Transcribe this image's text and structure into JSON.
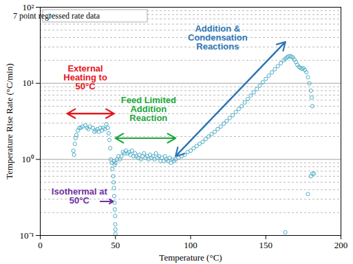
{
  "chart_data": {
    "type": "scatter",
    "x_label": "Temperature (°C)",
    "y_label": "Temperature Rise Rate (°C/min)",
    "log": "y",
    "grid": true,
    "legend": "top-left",
    "xlim": [
      0,
      200
    ],
    "xticks": [
      0,
      50,
      100,
      150,
      200
    ],
    "ylim": [
      0.1,
      100
    ],
    "yticks": [
      {
        "value": 0.1,
        "label": "10⁻¹"
      },
      {
        "value": 1,
        "label": "10⁰"
      },
      {
        "value": 10,
        "label": "10¹"
      },
      {
        "value": 100,
        "label": "10²"
      }
    ],
    "x": [
      22,
      22.5,
      23,
      23.5,
      24,
      25,
      26,
      27,
      28,
      30,
      31,
      32,
      33,
      35,
      36,
      37,
      38,
      39,
      40,
      41,
      42,
      43,
      44,
      45,
      45.5,
      46,
      46.5,
      47,
      47.5,
      48,
      48.5,
      48.8,
      49,
      49.2,
      49.4,
      49.6,
      49.8,
      49.9,
      50,
      50,
      49,
      49.5,
      50,
      51,
      52,
      53,
      54,
      55,
      56,
      57,
      58,
      59,
      60,
      61,
      62,
      63,
      64,
      65,
      66,
      67,
      68,
      69,
      70,
      71,
      72,
      73,
      74,
      75,
      76,
      77,
      78,
      79,
      80,
      81,
      82,
      83,
      84,
      85,
      86,
      87,
      88,
      89,
      90,
      92,
      94,
      96,
      98,
      100,
      102,
      104,
      106,
      108,
      110,
      112,
      114,
      116,
      118,
      120,
      122,
      124,
      126,
      128,
      130,
      132,
      134,
      136,
      138,
      140,
      142,
      144,
      146,
      148,
      150,
      152,
      154,
      156,
      158,
      160,
      162,
      163,
      164,
      165,
      166,
      167,
      168,
      169,
      170,
      171,
      172,
      173,
      174,
      175,
      176,
      177,
      178,
      179,
      180,
      180.5,
      181,
      163,
      178,
      180,
      181,
      182
    ],
    "series": [
      {
        "name": "7 point regressed rate data",
        "color": "#4bacc6",
        "marker": "circle",
        "values": [
          1.3,
          1.15,
          1.6,
          1.9,
          2.1,
          2.4,
          2.6,
          2.6,
          2.7,
          2.8,
          2.6,
          2.5,
          2.7,
          2.6,
          2.3,
          2.4,
          2.5,
          2.3,
          2.6,
          2.4,
          2.6,
          2.5,
          2.9,
          2.6,
          2.2,
          1.8,
          1.4,
          1.0,
          0.9,
          0.75,
          0.6,
          0.5,
          0.42,
          0.33,
          0.27,
          0.22,
          0.18,
          0.14,
          0.12,
          0.105,
          0.95,
          0.85,
          0.9,
          1.0,
          1.1,
          1.0,
          1.1,
          1.25,
          1.2,
          1.3,
          1.2,
          1.25,
          1.15,
          1.3,
          1.1,
          1.2,
          1.1,
          1.05,
          1.15,
          1.0,
          1.1,
          1.2,
          1.05,
          1.1,
          1.0,
          1.15,
          1.05,
          1.1,
          1.0,
          1.2,
          1.05,
          1.1,
          0.95,
          1.05,
          0.95,
          1.1,
          1.0,
          0.95,
          1.05,
          0.9,
          1.0,
          0.95,
          1.0,
          1.05,
          1.1,
          1.15,
          1.25,
          1.3,
          1.4,
          1.5,
          1.6,
          1.7,
          1.85,
          2.0,
          2.15,
          2.3,
          2.5,
          2.7,
          2.95,
          3.2,
          3.5,
          3.8,
          4.2,
          4.6,
          5.0,
          5.6,
          6.2,
          6.9,
          7.6,
          8.4,
          9.3,
          10.3,
          11.4,
          12.6,
          13.9,
          15.3,
          16.8,
          18.4,
          20.0,
          21.0,
          21.8,
          22.5,
          22.8,
          22.5,
          21.8,
          20.5,
          19.0,
          17.5,
          16.5,
          16.0,
          15.5,
          15.8,
          15.0,
          14.0,
          12.0,
          10.0,
          8.0,
          6.5,
          5.0,
          0.11,
          0.35,
          0.6,
          0.65,
          0.65
        ]
      }
    ],
    "annotations": [
      {
        "lines": [
          "External",
          "Heating to",
          "50°C"
        ],
        "color": "#e8141b",
        "x": 30,
        "y": 12,
        "arrows": [
          [
            [
              18,
              4
            ],
            [
              49,
              4
            ]
          ],
          [
            [
              49,
              4
            ],
            [
              18,
              4
            ]
          ]
        ]
      },
      {
        "lines": [
          "Feed Limited",
          "Addition",
          "Reaction"
        ],
        "color": "#1aa83a",
        "x": 72,
        "y": 4.6,
        "arrows": [
          [
            [
              50,
              1.9
            ],
            [
              90,
              1.9
            ]
          ],
          [
            [
              90,
              1.9
            ],
            [
              50,
              1.9
            ]
          ]
        ]
      },
      {
        "lines": [
          "Addition &",
          "Condensation",
          "Reactions"
        ],
        "color": "#2e75b6",
        "x": 118,
        "y": 40,
        "arrows": [
          [
            [
              90,
              1.1
            ],
            [
              163,
              35
            ]
          ],
          [
            [
              163,
              35
            ],
            [
              90,
              1.1
            ]
          ]
        ]
      },
      {
        "lines": [
          "Isothermal at",
          "50°C"
        ],
        "color": "#7030a0",
        "x": 26,
        "y": 0.33,
        "arrows": [
          [
            [
              40,
              0.28
            ],
            [
              48.5,
              0.28
            ]
          ]
        ]
      }
    ]
  }
}
